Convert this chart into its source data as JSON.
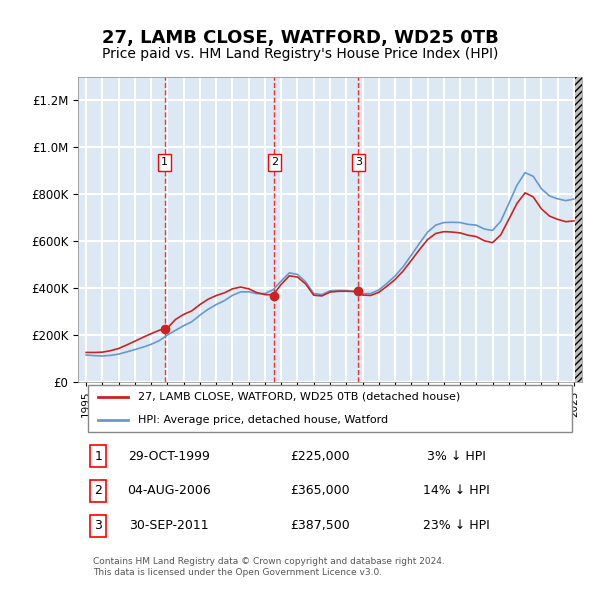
{
  "title": "27, LAMB CLOSE, WATFORD, WD25 0TB",
  "subtitle": "Price paid vs. HM Land Registry's House Price Index (HPI)",
  "title_fontsize": 13,
  "subtitle_fontsize": 10,
  "bg_color": "#dce9f5",
  "plot_bg_color": "#dce9f5",
  "grid_color": "#ffffff",
  "red_line_label": "27, LAMB CLOSE, WATFORD, WD25 0TB (detached house)",
  "blue_line_label": "HPI: Average price, detached house, Watford",
  "footer": "Contains HM Land Registry data © Crown copyright and database right 2024.\nThis data is licensed under the Open Government Licence v3.0.",
  "sale_markers": [
    {
      "num": 1,
      "year": 1999.83,
      "price": 225000,
      "date": "29-OCT-1999",
      "pct": "3%"
    },
    {
      "num": 2,
      "year": 2006.58,
      "price": 365000,
      "date": "04-AUG-2006",
      "pct": "14%"
    },
    {
      "num": 3,
      "year": 2011.75,
      "price": 387500,
      "date": "30-SEP-2011",
      "pct": "23%"
    }
  ],
  "ylim": [
    0,
    1300000
  ],
  "xlim_start": 1994.5,
  "xlim_end": 2025.5
}
